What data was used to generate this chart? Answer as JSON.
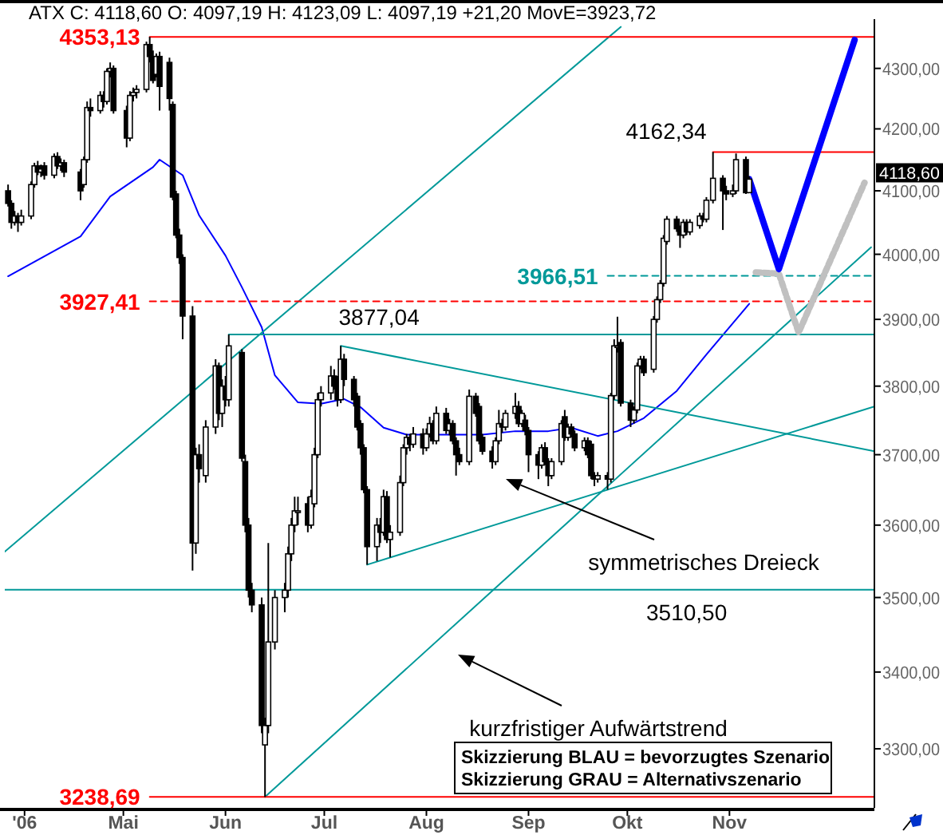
{
  "chart_data": {
    "type": "candlestick",
    "title": "ATX C: 4118,60 O: 4097,19 H: 4123,09 L: 4097,19 +21,20 MovE=3923,72",
    "log": true,
    "xlim": [
      "2006-03-26",
      "2006-12-15"
    ],
    "ylim": [
      3225,
      4375
    ],
    "xticks": [
      {
        "value": "2006-04-01",
        "label": "'06"
      },
      {
        "value": "2006-05-01",
        "label": "Mai"
      },
      {
        "value": "2006-06-01",
        "label": "Jun"
      },
      {
        "value": "2006-07-01",
        "label": "Jul"
      },
      {
        "value": "2006-08-01",
        "label": "Aug"
      },
      {
        "value": "2006-09-01",
        "label": "Sep"
      },
      {
        "value": "2006-10-01",
        "label": "Okt"
      },
      {
        "value": "2006-11-01",
        "label": "Nov"
      }
    ],
    "yticks": [
      {
        "value": 3300,
        "label": "3300,00"
      },
      {
        "value": 3400,
        "label": "3400,00"
      },
      {
        "value": 3500,
        "label": "3500,00"
      },
      {
        "value": 3600,
        "label": "3600,00"
      },
      {
        "value": 3700,
        "label": "3700,00"
      },
      {
        "value": 3800,
        "label": "3800,00"
      },
      {
        "value": 3900,
        "label": "3900,00"
      },
      {
        "value": 4000,
        "label": "4000,00"
      },
      {
        "value": 4100,
        "label": "4100,00"
      },
      {
        "value": 4200,
        "label": "4200,00"
      },
      {
        "value": 4300,
        "label": "4300,00"
      }
    ],
    "x": [
      "2006-03-27",
      "2006-03-28",
      "2006-03-29",
      "2006-03-30",
      "2006-03-31",
      "2006-04-03",
      "2006-04-04",
      "2006-04-05",
      "2006-04-06",
      "2006-04-07",
      "2006-04-10",
      "2006-04-11",
      "2006-04-12",
      "2006-04-13",
      "2006-04-18",
      "2006-04-19",
      "2006-04-20",
      "2006-04-21",
      "2006-04-24",
      "2006-04-25",
      "2006-04-26",
      "2006-04-27",
      "2006-04-28",
      "2006-05-02",
      "2006-05-03",
      "2006-05-04",
      "2006-05-05",
      "2006-05-08",
      "2006-05-09",
      "2006-05-10",
      "2006-05-11",
      "2006-05-12",
      "2006-05-15",
      "2006-05-16",
      "2006-05-17",
      "2006-05-18",
      "2006-05-19",
      "2006-05-22",
      "2006-05-23",
      "2006-05-24",
      "2006-05-26",
      "2006-05-29",
      "2006-05-30",
      "2006-05-31",
      "2006-06-01",
      "2006-06-02",
      "2006-06-06",
      "2006-06-07",
      "2006-06-08",
      "2006-06-09",
      "2006-06-12",
      "2006-06-13",
      "2006-06-14",
      "2006-06-16",
      "2006-06-19",
      "2006-06-20",
      "2006-06-21",
      "2006-06-22",
      "2006-06-23",
      "2006-06-26",
      "2006-06-27",
      "2006-06-28",
      "2006-06-29",
      "2006-06-30",
      "2006-07-03",
      "2006-07-04",
      "2006-07-05",
      "2006-07-06",
      "2006-07-07",
      "2006-07-10",
      "2006-07-11",
      "2006-07-12",
      "2006-07-13",
      "2006-07-14",
      "2006-07-17",
      "2006-07-18",
      "2006-07-19",
      "2006-07-20",
      "2006-07-21",
      "2006-07-24",
      "2006-07-25",
      "2006-07-26",
      "2006-07-27",
      "2006-07-28",
      "2006-07-31",
      "2006-08-01",
      "2006-08-02",
      "2006-08-03",
      "2006-08-04",
      "2006-08-07",
      "2006-08-08",
      "2006-08-09",
      "2006-08-10",
      "2006-08-11",
      "2006-08-14",
      "2006-08-16",
      "2006-08-17",
      "2006-08-18",
      "2006-08-21",
      "2006-08-22",
      "2006-08-23",
      "2006-08-24",
      "2006-08-25",
      "2006-08-28",
      "2006-08-29",
      "2006-08-30",
      "2006-08-31",
      "2006-09-01",
      "2006-09-04",
      "2006-09-05",
      "2006-09-06",
      "2006-09-07",
      "2006-09-08",
      "2006-09-11",
      "2006-09-12",
      "2006-09-13",
      "2006-09-14",
      "2006-09-15",
      "2006-09-18",
      "2006-09-19",
      "2006-09-20",
      "2006-09-21",
      "2006-09-22",
      "2006-09-25",
      "2006-09-26",
      "2006-09-27",
      "2006-09-28",
      "2006-09-29",
      "2006-10-02",
      "2006-10-03",
      "2006-10-04",
      "2006-10-05",
      "2006-10-06",
      "2006-10-09",
      "2006-10-10",
      "2006-10-11",
      "2006-10-12",
      "2006-10-13",
      "2006-10-16",
      "2006-10-17",
      "2006-10-18",
      "2006-10-19",
      "2006-10-20",
      "2006-10-23",
      "2006-10-24",
      "2006-10-25",
      "2006-10-27",
      "2006-10-30",
      "2006-10-31",
      "2006-11-02",
      "2006-11-03",
      "2006-11-06",
      "2006-11-07"
    ],
    "ohlc": [
      [
        4100,
        4110,
        4075,
        4080
      ],
      [
        4080,
        4085,
        4040,
        4050
      ],
      [
        4050,
        4068,
        4045,
        4060
      ],
      [
        4060,
        4065,
        4035,
        4050
      ],
      [
        4050,
        4070,
        4045,
        4060
      ],
      [
        4060,
        4115,
        4055,
        4110
      ],
      [
        4110,
        4145,
        4105,
        4140
      ],
      [
        4140,
        4148,
        4125,
        4130
      ],
      [
        4130,
        4142,
        4122,
        4135
      ],
      [
        4140,
        4146,
        4118,
        4125
      ],
      [
        4125,
        4160,
        4120,
        4155
      ],
      [
        4155,
        4162,
        4135,
        4140
      ],
      [
        4140,
        4152,
        4132,
        4145
      ],
      [
        4145,
        4150,
        4122,
        4130
      ],
      [
        4130,
        4135,
        4085,
        4100
      ],
      [
        4110,
        4155,
        4105,
        4150
      ],
      [
        4150,
        4245,
        4145,
        4235
      ],
      [
        4235,
        4250,
        4220,
        4230
      ],
      [
        4230,
        4262,
        4225,
        4255
      ],
      [
        4255,
        4262,
        4235,
        4245
      ],
      [
        4245,
        4300,
        4240,
        4295
      ],
      [
        4295,
        4310,
        4285,
        4300
      ],
      [
        4300,
        4305,
        4225,
        4230
      ],
      [
        4230,
        4238,
        4170,
        4185
      ],
      [
        4185,
        4262,
        4180,
        4255
      ],
      [
        4255,
        4268,
        4245,
        4260
      ],
      [
        4260,
        4272,
        4250,
        4265
      ],
      [
        4265,
        4345,
        4260,
        4340
      ],
      [
        4340,
        4353.13,
        4310,
        4320
      ],
      [
        4320,
        4330,
        4275,
        4280
      ],
      [
        4290,
        4325,
        4285,
        4320
      ],
      [
        4320,
        4328,
        4230,
        4270
      ],
      [
        4310,
        4318,
        4230,
        4250
      ],
      [
        4240,
        4245,
        4085,
        4090
      ],
      [
        4095,
        4100,
        4025,
        4030
      ],
      [
        4030,
        4040,
        3985,
        3995
      ],
      [
        3995,
        4000,
        3870,
        3905
      ],
      [
        3905,
        3920,
        3537,
        3575
      ],
      [
        3575,
        3710,
        3560,
        3700
      ],
      [
        3700,
        3715,
        3660,
        3680
      ],
      [
        3670,
        3750,
        3660,
        3740
      ],
      [
        3740,
        3840,
        3730,
        3830
      ],
      [
        3830,
        3835,
        3750,
        3760
      ],
      [
        3760,
        3810,
        3740,
        3800
      ],
      [
        3800,
        3815,
        3770,
        3780
      ],
      [
        3780,
        3877.04,
        3770,
        3860
      ],
      [
        3850,
        3855,
        3690,
        3695
      ],
      [
        3690,
        3700,
        3590,
        3600
      ],
      [
        3600,
        3610,
        3500,
        3510
      ],
      [
        3510,
        3520,
        3480,
        3490
      ],
      [
        3490,
        3500,
        3320,
        3330
      ],
      [
        3305,
        3340,
        3238.69,
        3330
      ],
      [
        3330,
        3575,
        3320,
        3440
      ],
      [
        3440,
        3510,
        3430,
        3500
      ],
      [
        3500,
        3520,
        3480,
        3510
      ],
      [
        3510,
        3570,
        3500,
        3560
      ],
      [
        3560,
        3610,
        3550,
        3600
      ],
      [
        3600,
        3640,
        3590,
        3620
      ],
      [
        3620,
        3640,
        3600,
        3620
      ],
      [
        3630,
        3640,
        3590,
        3600
      ],
      [
        3600,
        3650,
        3595,
        3640
      ],
      [
        3630,
        3710,
        3625,
        3700
      ],
      [
        3700,
        3790,
        3695,
        3780
      ],
      [
        3780,
        3800,
        3770,
        3790
      ],
      [
        3790,
        3830,
        3780,
        3815
      ],
      [
        3815,
        3825,
        3795,
        3800
      ],
      [
        3810,
        3815,
        3770,
        3780
      ],
      [
        3780,
        3860,
        3775,
        3840
      ],
      [
        3840,
        3848,
        3800,
        3810
      ],
      [
        3810,
        3815,
        3770,
        3780
      ],
      [
        3785,
        3790,
        3735,
        3740
      ],
      [
        3745,
        3750,
        3700,
        3710
      ],
      [
        3710,
        3715,
        3645,
        3650
      ],
      [
        3650,
        3655,
        3545,
        3570
      ],
      [
        3570,
        3610,
        3550,
        3600
      ],
      [
        3600,
        3610,
        3575,
        3590
      ],
      [
        3590,
        3650,
        3585,
        3640
      ],
      [
        3640,
        3648,
        3575,
        3580
      ],
      [
        3580,
        3600,
        3555,
        3590
      ],
      [
        3590,
        3670,
        3585,
        3660
      ],
      [
        3660,
        3715,
        3655,
        3710
      ],
      [
        3710,
        3730,
        3700,
        3725
      ],
      [
        3725,
        3730,
        3705,
        3715
      ],
      [
        3715,
        3740,
        3710,
        3730
      ],
      [
        3730,
        3738,
        3700,
        3710
      ],
      [
        3710,
        3738,
        3705,
        3730
      ],
      [
        3730,
        3755,
        3725,
        3745
      ],
      [
        3745,
        3750,
        3715,
        3720
      ],
      [
        3720,
        3770,
        3715,
        3760
      ],
      [
        3760,
        3768,
        3730,
        3735
      ],
      [
        3735,
        3752,
        3728,
        3745
      ],
      [
        3745,
        3750,
        3715,
        3720
      ],
      [
        3720,
        3725,
        3670,
        3700
      ],
      [
        3700,
        3710,
        3685,
        3690
      ],
      [
        3690,
        3795,
        3685,
        3785
      ],
      [
        3785,
        3790,
        3755,
        3760
      ],
      [
        3770,
        3775,
        3715,
        3720
      ],
      [
        3725,
        3730,
        3700,
        3705
      ],
      [
        3705,
        3712,
        3680,
        3690
      ],
      [
        3690,
        3725,
        3685,
        3720
      ],
      [
        3720,
        3765,
        3715,
        3745
      ],
      [
        3745,
        3752,
        3732,
        3740
      ],
      [
        3740,
        3765,
        3735,
        3760
      ],
      [
        3760,
        3790,
        3752,
        3770
      ],
      [
        3770,
        3778,
        3740,
        3745
      ],
      [
        3745,
        3765,
        3740,
        3760
      ],
      [
        3750,
        3758,
        3728,
        3735
      ],
      [
        3735,
        3740,
        3675,
        3700
      ],
      [
        3700,
        3705,
        3665,
        3685
      ],
      [
        3685,
        3715,
        3680,
        3710
      ],
      [
        3710,
        3718,
        3685,
        3690
      ],
      [
        3690,
        3695,
        3655,
        3670
      ],
      [
        3670,
        3695,
        3665,
        3690
      ],
      [
        3690,
        3750,
        3685,
        3745
      ],
      [
        3755,
        3765,
        3720,
        3725
      ],
      [
        3725,
        3745,
        3720,
        3740
      ],
      [
        3740,
        3745,
        3725,
        3730
      ],
      [
        3730,
        3735,
        3705,
        3710
      ],
      [
        3710,
        3725,
        3705,
        3720
      ],
      [
        3720,
        3725,
        3695,
        3700
      ],
      [
        3715,
        3720,
        3665,
        3670
      ],
      [
        3670,
        3675,
        3655,
        3665
      ],
      [
        3665,
        3675,
        3660,
        3670
      ],
      [
        3670,
        3675,
        3650,
        3665
      ],
      [
        3665,
        3790,
        3660,
        3786
      ],
      [
        3786,
        3870,
        3780,
        3860
      ],
      [
        3860,
        3904,
        3850,
        3860
      ],
      [
        3865,
        3870,
        3770,
        3775
      ],
      [
        3775,
        3780,
        3740,
        3750
      ],
      [
        3750,
        3770,
        3745,
        3765
      ],
      [
        3765,
        3835,
        3760,
        3830
      ],
      [
        3830,
        3845,
        3825,
        3840
      ],
      [
        3840,
        3845,
        3815,
        3820
      ],
      [
        3825,
        3905,
        3820,
        3900
      ],
      [
        3900,
        3935,
        3895,
        3930
      ],
      [
        3930,
        3960,
        3925,
        3955
      ],
      [
        3955,
        4030,
        3950,
        4025
      ],
      [
        4020,
        4060,
        4015,
        4055
      ],
      [
        4055,
        4060,
        4035,
        4040
      ],
      [
        4040,
        4045,
        4010,
        4030
      ],
      [
        4030,
        4055,
        4025,
        4050
      ],
      [
        4050,
        4055,
        4030,
        4035
      ],
      [
        4035,
        4055,
        4030,
        4050
      ],
      [
        4045,
        4065,
        4040,
        4060
      ],
      [
        4060,
        4065,
        4050,
        4055
      ],
      [
        4055,
        4090,
        4050,
        4085
      ],
      [
        4085,
        4162.34,
        4080,
        4120
      ],
      [
        4120,
        4125,
        4038,
        4100
      ],
      [
        4100,
        4108,
        4085,
        4095
      ],
      [
        4095,
        4110,
        4090,
        4100
      ],
      [
        4100,
        4160,
        4095,
        4150
      ],
      [
        4150,
        4155,
        4095,
        4097
      ],
      [
        4097.19,
        4123.09,
        4097.19,
        4118.6
      ]
    ],
    "series": [
      {
        "type": "line",
        "color": "#0000ff",
        "x": [
          "2006-03-27",
          "2006-04-18",
          "2006-04-27",
          "2006-05-10",
          "2006-05-12",
          "2006-05-19",
          "2006-05-24",
          "2006-06-01",
          "2006-06-06",
          "2006-06-12",
          "2006-06-16",
          "2006-06-23",
          "2006-06-30",
          "2006-07-07",
          "2006-07-12",
          "2006-07-19",
          "2006-07-26",
          "2006-08-04",
          "2006-08-18",
          "2006-08-28",
          "2006-09-07",
          "2006-09-14",
          "2006-09-22",
          "2006-09-28",
          "2006-10-06",
          "2006-10-16",
          "2006-10-25",
          "2006-11-07"
        ],
        "values": [
          3966,
          4028,
          4091,
          4138,
          4150,
          4125,
          4061,
          3998,
          3949,
          3888,
          3816,
          3776,
          3774,
          3781,
          3769,
          3739,
          3729,
          3729,
          3729,
          3734,
          3734,
          3739,
          3727,
          3734,
          3753,
          3793,
          3847,
          3923.72
        ]
      },
      {
        "type": "line",
        "color": "#009999",
        "x": [
          "2006-03-26",
          "2006-09-29"
        ],
        "values": [
          3563,
          4370
        ]
      },
      {
        "type": "line",
        "color": "#009999",
        "x": [
          "2006-06-13",
          "2006-12-14"
        ],
        "values": [
          3238.69,
          4011
        ]
      },
      {
        "type": "line",
        "color": "#009999",
        "x": [
          "2006-07-06",
          "2006-12-15"
        ],
        "values": [
          3860,
          3705
        ]
      },
      {
        "type": "line",
        "color": "#009999",
        "x": [
          "2006-07-14",
          "2006-12-15"
        ],
        "values": [
          3545,
          3770
        ]
      },
      {
        "type": "line",
        "color": "#009999",
        "x": [
          "2006-06-02",
          "2006-12-15"
        ],
        "values": [
          3877.04,
          3877.04
        ]
      },
      {
        "type": "line",
        "color": "#009999",
        "x": [
          "2006-03-26",
          "2006-12-15"
        ],
        "values": [
          3510.5,
          3510.5
        ]
      },
      {
        "type": "line",
        "color": "#009999",
        "line_style": "dashed",
        "x": [
          "2006-09-25",
          "2006-12-15"
        ],
        "values": [
          3966.51,
          3966.51
        ]
      },
      {
        "type": "line",
        "color": "#ff0000",
        "x": [
          "2006-05-09",
          "2006-12-15"
        ],
        "values": [
          4353.13,
          4353.13
        ]
      },
      {
        "type": "line",
        "color": "#ff0000",
        "line_style": "dashed",
        "x": [
          "2006-05-09",
          "2006-12-15"
        ],
        "values": [
          3927.41,
          3927.41
        ]
      },
      {
        "type": "line",
        "color": "#ff0000",
        "x": [
          "2006-05-09",
          "2006-12-15"
        ],
        "values": [
          3238.69,
          3238.69
        ]
      },
      {
        "type": "line",
        "color": "#ff0000",
        "x": [
          "2006-10-27",
          "2006-12-15"
        ],
        "values": [
          4162.34,
          4162.34
        ]
      },
      {
        "type": "line",
        "color": "#c0c0c0",
        "line_style": "dotted",
        "x": [
          "2006-11-09",
          "2006-11-16",
          "2006-11-22",
          "2006-12-12"
        ],
        "values": [
          3972,
          3970,
          3880,
          4113
        ]
      },
      {
        "type": "line",
        "color": "#0000ff",
        "x": [
          "2006-11-07",
          "2006-11-16",
          "2006-12-09"
        ],
        "values": [
          4118.6,
          3977,
          4348
        ]
      }
    ],
    "annotations": [
      {
        "text": "4353,13",
        "x": "2006-05-09",
        "y": 4353.13
      },
      {
        "text": "3927,41",
        "x": "2006-05-09",
        "y": 3927.41
      },
      {
        "text": "3238,69",
        "x": "2006-05-09",
        "y": 3238.69
      },
      {
        "text": "3877,04",
        "x": "2006-07-06",
        "y": 3877.04
      },
      {
        "text": "4162,34",
        "x": "2006-10-27",
        "y": 4162.34
      },
      {
        "text": "3966,51",
        "x": "2006-09-25",
        "y": 3966.51
      },
      {
        "text": "3510,50",
        "x": "2006-10-19",
        "y": 3510.5
      },
      "symmetrisches Dreieck",
      "kurzfristiger Aufwärtstrend",
      "Skizzierung BLAU = bevorzugtes Szenario",
      "Skizzierung GRAU = Alternativszenario",
      "4118,60"
    ]
  }
}
